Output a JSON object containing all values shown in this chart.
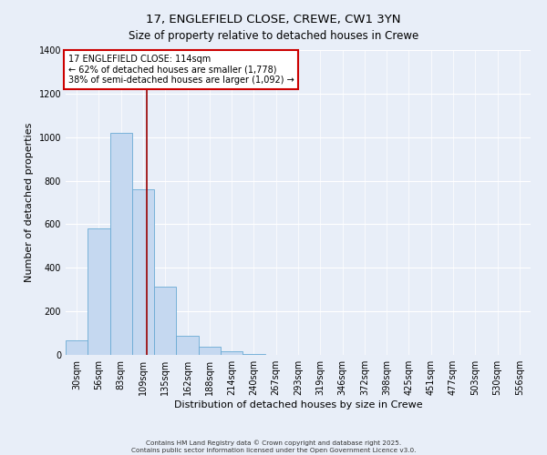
{
  "title": "17, ENGLEFIELD CLOSE, CREWE, CW1 3YN",
  "subtitle": "Size of property relative to detached houses in Crewe",
  "xlabel": "Distribution of detached houses by size in Crewe",
  "ylabel": "Number of detached properties",
  "bin_labels": [
    "30sqm",
    "56sqm",
    "83sqm",
    "109sqm",
    "135sqm",
    "162sqm",
    "188sqm",
    "214sqm",
    "240sqm",
    "267sqm",
    "293sqm",
    "319sqm",
    "346sqm",
    "372sqm",
    "398sqm",
    "425sqm",
    "451sqm",
    "477sqm",
    "503sqm",
    "530sqm",
    "556sqm"
  ],
  "bin_values": [
    65,
    580,
    1020,
    760,
    315,
    88,
    38,
    18,
    5,
    0,
    0,
    0,
    0,
    0,
    0,
    0,
    0,
    0,
    0,
    0,
    0
  ],
  "bar_color": "#c5d8f0",
  "bar_edge_color": "#6aaad4",
  "ylim": [
    0,
    1400
  ],
  "yticks": [
    0,
    200,
    400,
    600,
    800,
    1000,
    1200,
    1400
  ],
  "vline_color": "#990000",
  "vline_x_idx": 3.18,
  "annotation_title": "17 ENGLEFIELD CLOSE: 114sqm",
  "annotation_line1": "← 62% of detached houses are smaller (1,778)",
  "annotation_line2": "38% of semi-detached houses are larger (1,092) →",
  "annotation_box_facecolor": "#ffffff",
  "annotation_box_edgecolor": "#cc0000",
  "footer_line1": "Contains HM Land Registry data © Crown copyright and database right 2025.",
  "footer_line2": "Contains public sector information licensed under the Open Government Licence v3.0.",
  "background_color": "#e8eef8",
  "plot_bg_color": "#e8eef8",
  "title_fontsize": 9.5,
  "subtitle_fontsize": 8.5,
  "ylabel_fontsize": 8,
  "xlabel_fontsize": 8,
  "tick_fontsize": 7,
  "annot_fontsize": 7
}
